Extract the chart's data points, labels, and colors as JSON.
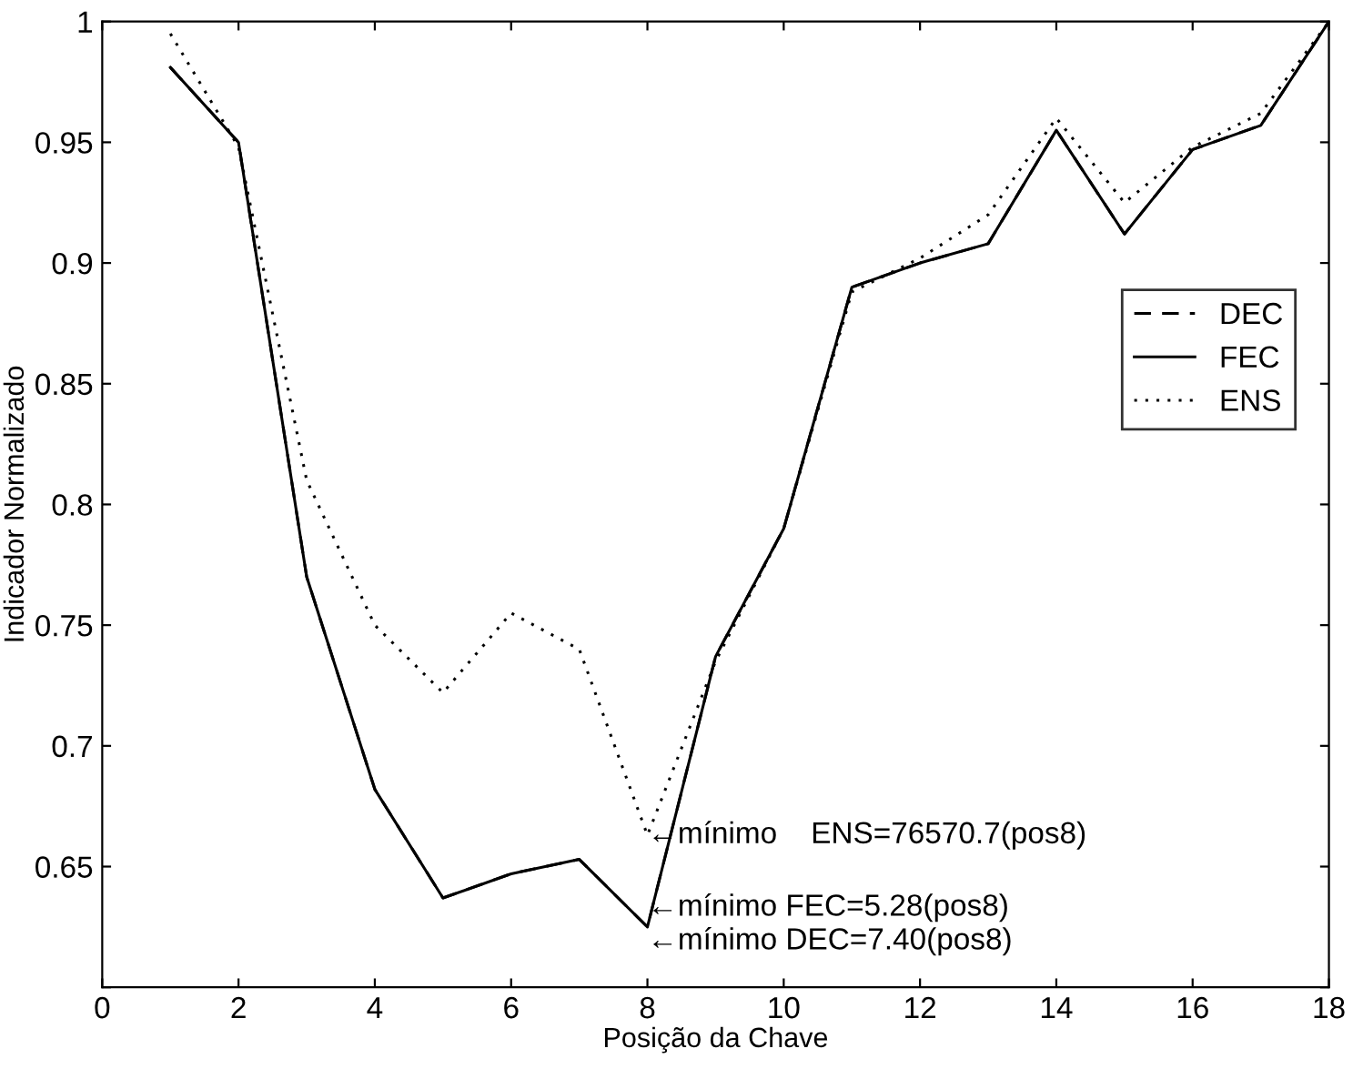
{
  "chart_data": {
    "type": "line",
    "xlabel": "Posição da Chave",
    "ylabel": "Indicador Normalizado",
    "x": [
      1,
      2,
      3,
      4,
      5,
      6,
      7,
      8,
      9,
      10,
      11,
      12,
      13,
      14,
      15,
      16,
      17,
      18
    ],
    "series": [
      {
        "name": "DEC",
        "color": "#000000",
        "line_style": "dashed",
        "values": [
          0.981,
          0.95,
          0.77,
          0.682,
          0.637,
          0.647,
          0.653,
          0.625,
          0.737,
          0.79,
          0.89,
          0.9,
          0.908,
          0.955,
          0.912,
          0.947,
          0.957,
          1.0
        ]
      },
      {
        "name": "FEC",
        "color": "#000000",
        "line_style": "solid",
        "values": [
          0.981,
          0.95,
          0.77,
          0.682,
          0.637,
          0.647,
          0.653,
          0.625,
          0.737,
          0.79,
          0.89,
          0.9,
          0.908,
          0.955,
          0.912,
          0.947,
          0.957,
          1.0
        ]
      },
      {
        "name": "ENS",
        "color": "#000000",
        "line_style": "dotted",
        "values": [
          0.995,
          0.948,
          0.81,
          0.75,
          0.722,
          0.755,
          0.74,
          0.663,
          0.735,
          0.79,
          0.888,
          0.902,
          0.92,
          0.96,
          0.925,
          0.948,
          0.962,
          1.0
        ]
      }
    ],
    "xlim": [
      0,
      18
    ],
    "xticks": [
      0,
      2,
      4,
      6,
      8,
      10,
      12,
      14,
      16,
      18
    ],
    "ylim": [
      0.6,
      1
    ],
    "yticks": [
      {
        "value": 0.6,
        "label": null
      },
      0.65,
      0.7,
      0.75,
      0.8,
      0.85,
      0.9,
      0.95,
      1
    ],
    "legend": "right",
    "grid": false,
    "annotations": [
      {
        "text": "←mínimo    ENS=76570.7(pos8)",
        "x": 8,
        "y": 0.663
      },
      {
        "text": "←mínimo FEC=5.28(pos8)",
        "x": 8,
        "y": 0.633
      },
      "←mínimo DEC=7.40(pos8)"
    ]
  }
}
